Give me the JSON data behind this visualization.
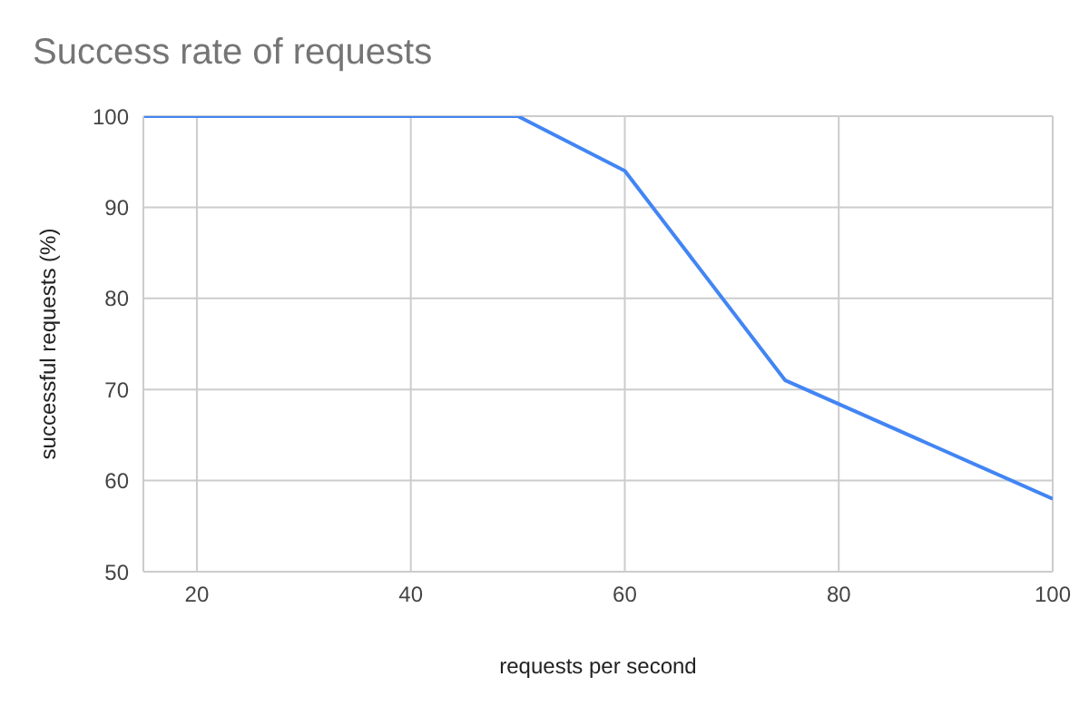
{
  "chart_data": {
    "type": "line",
    "title": "Success rate of requests",
    "xlabel": "requests per second",
    "ylabel": "successful requests (%)",
    "x": [
      15,
      50,
      60,
      75,
      100
    ],
    "series": [
      {
        "color": "#4285f4",
        "values": [
          100,
          100,
          94,
          71,
          58
        ]
      }
    ],
    "xlim": [
      15,
      100
    ],
    "xticks": [
      20,
      40,
      60,
      80,
      100
    ],
    "ylim": [
      50,
      100
    ],
    "yticks": [
      50,
      60,
      70,
      80,
      90,
      100
    ],
    "grid": true,
    "marker": "none",
    "line_style": "solid"
  }
}
